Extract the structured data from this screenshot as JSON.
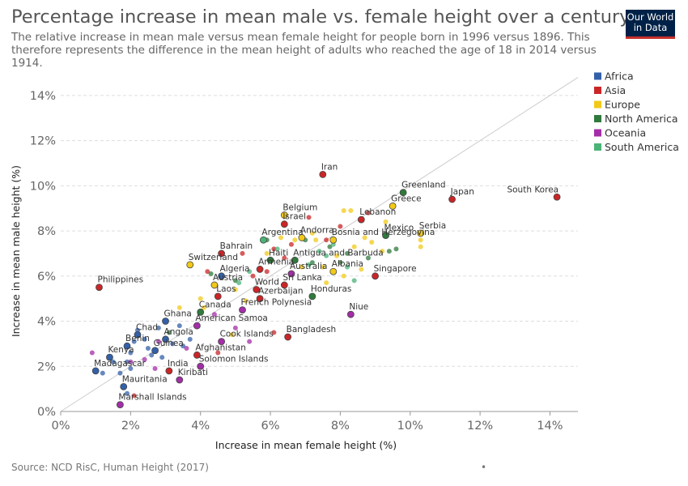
{
  "header": {
    "title": "Percentage increase in mean male vs. female height over a century",
    "subtitle": "The relative increase in mean male versus mean female height for people born in 1996 versus 1896. This therefore represents the difference in the mean height of adults who reached the age of 18 in 2014 versus 1914."
  },
  "logo": {
    "line1": "Our World",
    "line2": "in Data"
  },
  "footer": {
    "source": "Source: NCD RisC, Human Height (2017)",
    "dot": "•"
  },
  "chart_data": {
    "type": "scatter",
    "xlabel": "Increase in mean female height (%)",
    "ylabel": "Increase in mean male height (%)",
    "xlim": [
      0,
      14.8
    ],
    "ylim": [
      0,
      15
    ],
    "xticks": [
      0,
      2,
      4,
      6,
      8,
      10,
      12,
      14
    ],
    "yticks": [
      0,
      2,
      4,
      6,
      8,
      10,
      12,
      14
    ],
    "tick_suffix": "%",
    "grid": "horizontal-dashed",
    "reference_line": "y = x",
    "legend_position": "right",
    "legend": [
      {
        "name": "Africa",
        "color": "#3360a9"
      },
      {
        "name": "Asia",
        "color": "#ca2628"
      },
      {
        "name": "Europe",
        "color": "#f2c918"
      },
      {
        "name": "North America",
        "color": "#2f7a3c"
      },
      {
        "name": "Oceania",
        "color": "#a32ea7"
      },
      {
        "name": "South America",
        "color": "#4bb378"
      }
    ],
    "labeled_points": [
      {
        "name": "Iran",
        "region": "Asia",
        "x": 7.5,
        "y": 10.5
      },
      {
        "name": "Greenland",
        "region": "North America",
        "x": 9.8,
        "y": 9.7
      },
      {
        "name": "Japan",
        "region": "Asia",
        "x": 11.2,
        "y": 9.4
      },
      {
        "name": "South Korea",
        "region": "Asia",
        "x": 14.2,
        "y": 9.5
      },
      {
        "name": "Greece",
        "region": "Europe",
        "x": 9.5,
        "y": 9.1
      },
      {
        "name": "Belgium",
        "region": "Europe",
        "x": 6.4,
        "y": 8.7
      },
      {
        "name": "Israel",
        "region": "Asia",
        "x": 6.4,
        "y": 8.3
      },
      {
        "name": "Lebanon",
        "region": "Asia",
        "x": 8.6,
        "y": 8.5
      },
      {
        "name": "Serbia",
        "region": "Europe",
        "x": 10.3,
        "y": 7.9
      },
      {
        "name": "Mexico",
        "region": "North America",
        "x": 9.3,
        "y": 7.8
      },
      {
        "name": "Argentina",
        "region": "South America",
        "x": 5.8,
        "y": 7.6
      },
      {
        "name": "Andorra",
        "region": "Europe",
        "x": 6.9,
        "y": 7.7
      },
      {
        "name": "Bosnia and Herzegovina",
        "region": "Europe",
        "x": 7.8,
        "y": 7.6
      },
      {
        "name": "Bahrain",
        "region": "Asia",
        "x": 4.6,
        "y": 7.0
      },
      {
        "name": "Switzerland",
        "region": "Europe",
        "x": 3.7,
        "y": 6.5
      },
      {
        "name": "Haiti",
        "region": "North America",
        "x": 6.0,
        "y": 6.7
      },
      {
        "name": "Antigua and Barbuda",
        "region": "North America",
        "x": 6.7,
        "y": 6.7
      },
      {
        "name": "Armenia",
        "region": "Asia",
        "x": 5.7,
        "y": 6.3
      },
      {
        "name": "Albania",
        "region": "Europe",
        "x": 7.8,
        "y": 6.2
      },
      {
        "name": "Algeria",
        "region": "Africa",
        "x": 4.6,
        "y": 6.0
      },
      {
        "name": "Australia",
        "region": "Oceania",
        "x": 6.6,
        "y": 6.1
      },
      {
        "name": "Singapore",
        "region": "Asia",
        "x": 9.0,
        "y": 6.0
      },
      {
        "name": "Austria",
        "region": "Europe",
        "x": 4.4,
        "y": 5.6
      },
      {
        "name": "Sri Lanka",
        "region": "Asia",
        "x": 6.4,
        "y": 5.6
      },
      {
        "name": "World",
        "region": "Asia",
        "x": 5.6,
        "y": 5.4
      },
      {
        "name": "Philippines",
        "region": "Asia",
        "x": 1.1,
        "y": 5.5
      },
      {
        "name": "Laos",
        "region": "Asia",
        "x": 4.5,
        "y": 5.1
      },
      {
        "name": "Azerbaijan",
        "region": "Asia",
        "x": 5.7,
        "y": 5.0
      },
      {
        "name": "Honduras",
        "region": "North America",
        "x": 7.2,
        "y": 5.1
      },
      {
        "name": "Canada",
        "region": "North America",
        "x": 4.0,
        "y": 4.4
      },
      {
        "name": "French Polynesia",
        "region": "Oceania",
        "x": 5.2,
        "y": 4.5
      },
      {
        "name": "Niue",
        "region": "Oceania",
        "x": 8.3,
        "y": 4.3
      },
      {
        "name": "Ghana",
        "region": "Africa",
        "x": 3.0,
        "y": 4.0
      },
      {
        "name": "American Samoa",
        "region": "Oceania",
        "x": 3.9,
        "y": 3.8
      },
      {
        "name": "Chad",
        "region": "Africa",
        "x": 2.2,
        "y": 3.4
      },
      {
        "name": "Bangladesh",
        "region": "Asia",
        "x": 6.5,
        "y": 3.3
      },
      {
        "name": "Angola",
        "region": "Africa",
        "x": 3.0,
        "y": 3.2
      },
      {
        "name": "Cook Islands",
        "region": "Oceania",
        "x": 4.6,
        "y": 3.1
      },
      {
        "name": "Benin",
        "region": "Africa",
        "x": 1.9,
        "y": 2.9
      },
      {
        "name": "Guinea",
        "region": "Africa",
        "x": 2.7,
        "y": 2.7
      },
      {
        "name": "Afghanistan",
        "region": "Asia",
        "x": 3.9,
        "y": 2.5
      },
      {
        "name": "Kenya",
        "region": "Africa",
        "x": 1.4,
        "y": 2.4
      },
      {
        "name": "Solomon Islands",
        "region": "Oceania",
        "x": 4.0,
        "y": 2.0
      },
      {
        "name": "Madagascar",
        "region": "Africa",
        "x": 1.0,
        "y": 1.8
      },
      {
        "name": "India",
        "region": "Asia",
        "x": 3.1,
        "y": 1.8
      },
      {
        "name": "Kiribati",
        "region": "Oceania",
        "x": 3.4,
        "y": 1.4
      },
      {
        "name": "Mauritania",
        "region": "Africa",
        "x": 1.8,
        "y": 1.1
      },
      {
        "name": "Marshall Islands",
        "region": "Oceania",
        "x": 1.7,
        "y": 0.3
      }
    ],
    "unlabeled_points": [
      {
        "region": "Africa",
        "x": 1.2,
        "y": 1.7
      },
      {
        "region": "Africa",
        "x": 1.5,
        "y": 2.2
      },
      {
        "region": "Africa",
        "x": 1.7,
        "y": 1.7
      },
      {
        "region": "Africa",
        "x": 1.9,
        "y": 2.2
      },
      {
        "region": "Africa",
        "x": 2.0,
        "y": 2.6
      },
      {
        "region": "Africa",
        "x": 2.1,
        "y": 3.1
      },
      {
        "region": "Africa",
        "x": 2.2,
        "y": 3.6
      },
      {
        "region": "Africa",
        "x": 2.4,
        "y": 3.2
      },
      {
        "region": "Africa",
        "x": 2.6,
        "y": 2.5
      },
      {
        "region": "Africa",
        "x": 2.8,
        "y": 3.7
      },
      {
        "region": "Africa",
        "x": 2.9,
        "y": 2.4
      },
      {
        "region": "Africa",
        "x": 3.2,
        "y": 3.0
      },
      {
        "region": "Africa",
        "x": 3.4,
        "y": 3.8
      },
      {
        "region": "Africa",
        "x": 3.5,
        "y": 2.9
      },
      {
        "region": "Africa",
        "x": 3.7,
        "y": 3.2
      },
      {
        "region": "Africa",
        "x": 2.0,
        "y": 1.9
      },
      {
        "region": "Africa",
        "x": 2.5,
        "y": 2.8
      },
      {
        "region": "Africa",
        "x": 1.9,
        "y": 0.8
      },
      {
        "region": "Asia",
        "x": 4.2,
        "y": 6.2
      },
      {
        "region": "Asia",
        "x": 5.2,
        "y": 7.0
      },
      {
        "region": "Asia",
        "x": 5.9,
        "y": 6.2
      },
      {
        "region": "Asia",
        "x": 6.1,
        "y": 7.2
      },
      {
        "region": "Asia",
        "x": 6.4,
        "y": 6.8
      },
      {
        "region": "Asia",
        "x": 7.1,
        "y": 8.6
      },
      {
        "region": "Asia",
        "x": 7.6,
        "y": 7.6
      },
      {
        "region": "Asia",
        "x": 8.0,
        "y": 8.2
      },
      {
        "region": "Asia",
        "x": 8.8,
        "y": 8.8
      },
      {
        "region": "Asia",
        "x": 5.5,
        "y": 6.0
      },
      {
        "region": "Asia",
        "x": 6.6,
        "y": 7.4
      },
      {
        "region": "Asia",
        "x": 4.5,
        "y": 2.6
      },
      {
        "region": "Asia",
        "x": 6.1,
        "y": 3.5
      },
      {
        "region": "Asia",
        "x": 2.1,
        "y": 0.7
      },
      {
        "region": "Europe",
        "x": 4.0,
        "y": 5.0
      },
      {
        "region": "Europe",
        "x": 4.1,
        "y": 4.6
      },
      {
        "region": "Europe",
        "x": 5.0,
        "y": 5.4
      },
      {
        "region": "Europe",
        "x": 5.3,
        "y": 4.9
      },
      {
        "region": "Europe",
        "x": 5.9,
        "y": 7.0
      },
      {
        "region": "Europe",
        "x": 6.3,
        "y": 7.7
      },
      {
        "region": "Europe",
        "x": 6.7,
        "y": 7.6
      },
      {
        "region": "Europe",
        "x": 7.2,
        "y": 7.9
      },
      {
        "region": "Europe",
        "x": 7.3,
        "y": 7.6
      },
      {
        "region": "Europe",
        "x": 7.6,
        "y": 5.7
      },
      {
        "region": "Europe",
        "x": 7.9,
        "y": 6.9
      },
      {
        "region": "Europe",
        "x": 8.1,
        "y": 8.9
      },
      {
        "region": "Europe",
        "x": 8.3,
        "y": 8.9
      },
      {
        "region": "Europe",
        "x": 8.4,
        "y": 7.3
      },
      {
        "region": "Europe",
        "x": 8.6,
        "y": 6.3
      },
      {
        "region": "Europe",
        "x": 8.7,
        "y": 7.7
      },
      {
        "region": "Europe",
        "x": 8.9,
        "y": 7.5
      },
      {
        "region": "Europe",
        "x": 9.2,
        "y": 7.1
      },
      {
        "region": "Europe",
        "x": 9.3,
        "y": 8.4
      },
      {
        "region": "Europe",
        "x": 10.3,
        "y": 7.6
      },
      {
        "region": "Europe",
        "x": 10.3,
        "y": 7.3
      },
      {
        "region": "Europe",
        "x": 7.5,
        "y": 6.4
      },
      {
        "region": "Europe",
        "x": 6.9,
        "y": 6.4
      },
      {
        "region": "Europe",
        "x": 8.1,
        "y": 6.0
      },
      {
        "region": "Europe",
        "x": 3.4,
        "y": 4.6
      },
      {
        "region": "Europe",
        "x": 4.9,
        "y": 3.4
      },
      {
        "region": "North America",
        "x": 4.3,
        "y": 6.1
      },
      {
        "region": "North America",
        "x": 5.9,
        "y": 7.6
      },
      {
        "region": "North America",
        "x": 7.0,
        "y": 7.6
      },
      {
        "region": "North America",
        "x": 7.7,
        "y": 7.3
      },
      {
        "region": "North America",
        "x": 8.0,
        "y": 6.6
      },
      {
        "region": "North America",
        "x": 8.2,
        "y": 7.0
      },
      {
        "region": "North America",
        "x": 8.8,
        "y": 6.8
      },
      {
        "region": "North America",
        "x": 9.4,
        "y": 7.1
      },
      {
        "region": "North America",
        "x": 9.6,
        "y": 7.2
      },
      {
        "region": "North America",
        "x": 5.0,
        "y": 5.8
      },
      {
        "region": "North America",
        "x": 3.1,
        "y": 3.5
      },
      {
        "region": "North America",
        "x": 7.2,
        "y": 6.6
      },
      {
        "region": "Oceania",
        "x": 0.9,
        "y": 2.6
      },
      {
        "region": "Oceania",
        "x": 2.0,
        "y": 2.2
      },
      {
        "region": "Oceania",
        "x": 2.4,
        "y": 2.3
      },
      {
        "region": "Oceania",
        "x": 2.8,
        "y": 3.1
      },
      {
        "region": "Oceania",
        "x": 3.6,
        "y": 2.8
      },
      {
        "region": "Oceania",
        "x": 4.4,
        "y": 4.3
      },
      {
        "region": "Oceania",
        "x": 5.0,
        "y": 3.7
      },
      {
        "region": "Oceania",
        "x": 5.4,
        "y": 3.1
      },
      {
        "region": "Oceania",
        "x": 2.7,
        "y": 1.9
      },
      {
        "region": "South America",
        "x": 5.4,
        "y": 6.2
      },
      {
        "region": "South America",
        "x": 6.2,
        "y": 7.2
      },
      {
        "region": "South America",
        "x": 7.1,
        "y": 6.5
      },
      {
        "region": "South America",
        "x": 7.4,
        "y": 7.1
      },
      {
        "region": "South America",
        "x": 7.6,
        "y": 6.9
      },
      {
        "region": "South America",
        "x": 8.2,
        "y": 6.4
      },
      {
        "region": "South America",
        "x": 8.4,
        "y": 5.8
      },
      {
        "region": "South America",
        "x": 7.8,
        "y": 7.4
      },
      {
        "region": "South America",
        "x": 5.1,
        "y": 5.7
      }
    ]
  }
}
